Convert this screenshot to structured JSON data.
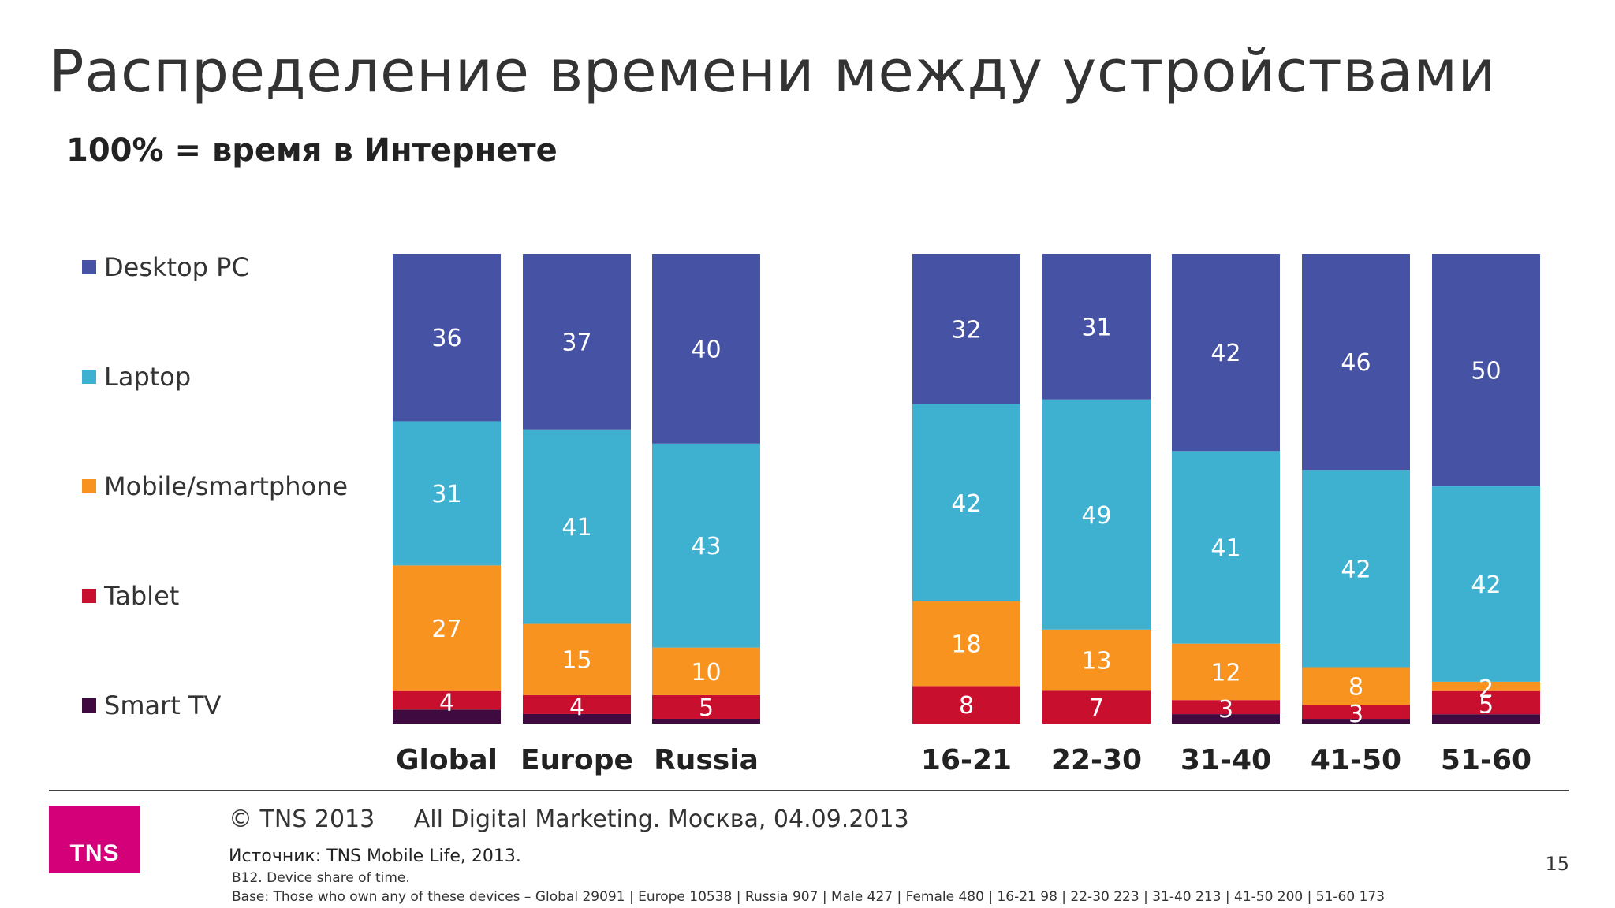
{
  "slide": {
    "title": "Распределение времени между устройствами",
    "subtitle": "100% = время в Интернете",
    "page_number": "15"
  },
  "footer": {
    "copyright": "© TNS 2013",
    "event": "All Digital Marketing. Москва, 04.09.2013",
    "source": "Источник: TNS Mobile Life, 2013.",
    "question": "B12. Device share of time.",
    "base": "Base: Those who own any of these devices – Global 29091 | Europe 10538 | Russia 907 | Male 427 | Female 480 | 16-21 98 | 22-30 223 | 31-40 213 | 41-50 200 | 51-60 173",
    "logo_text": "TNS"
  },
  "colors": {
    "desktop": "#4652a3",
    "laptop": "#3fb1d0",
    "mobile": "#f7931e",
    "tablet": "#c8102e",
    "smarttv": "#3f0a40",
    "logo": "#d4007a"
  },
  "chart_data": {
    "type": "bar",
    "stacked": true,
    "categories": [
      "Global",
      "Europe",
      "Russia",
      "16-21",
      "22-30",
      "31-40",
      "41-50",
      "51-60"
    ],
    "series": [
      {
        "name": "Desktop PC",
        "values": [
          36,
          37,
          40,
          32,
          31,
          42,
          46,
          50
        ],
        "labels": [
          "36",
          "37",
          "40",
          "32",
          "31",
          "42",
          "46",
          "50"
        ],
        "color": "#4652a3"
      },
      {
        "name": "Laptop",
        "values": [
          31,
          41,
          43,
          42,
          49,
          41,
          42,
          42
        ],
        "labels": [
          "31",
          "41",
          "43",
          "42",
          "49",
          "41",
          "42",
          "42"
        ],
        "color": "#3fb1d0"
      },
      {
        "name": "Mobile/smartphone",
        "values": [
          27,
          15,
          10,
          18,
          13,
          12,
          8,
          2
        ],
        "labels": [
          "27",
          "15",
          "10",
          "18",
          "13",
          "12",
          "8",
          "2"
        ],
        "color": "#f7931e"
      },
      {
        "name": "Tablet",
        "values": [
          4,
          4,
          5,
          8,
          7,
          3,
          3,
          5
        ],
        "labels": [
          "4",
          "4",
          "5",
          "8",
          "7",
          "3",
          "3",
          "5"
        ],
        "color": "#c8102e"
      },
      {
        "name": "Smart TV",
        "values": [
          3,
          2,
          1,
          0,
          0,
          2,
          1,
          2
        ],
        "labels": [
          "",
          "",
          "",
          "",
          "",
          "",
          "",
          ""
        ],
        "color": "#3f0a40"
      }
    ],
    "ylim": [
      0,
      100
    ],
    "legend": "left",
    "grid": false
  }
}
